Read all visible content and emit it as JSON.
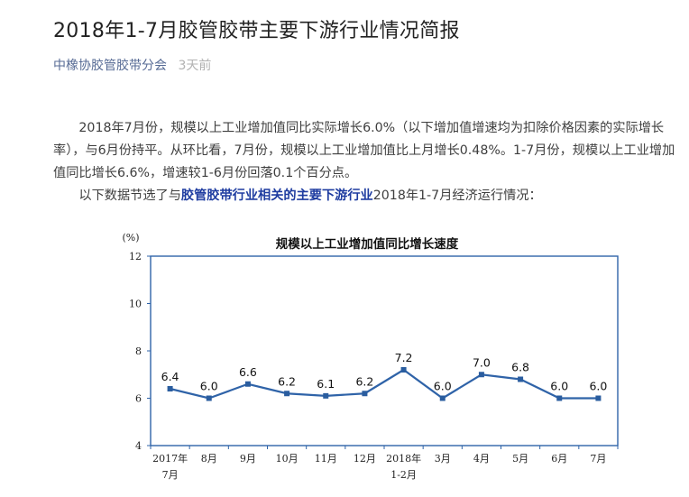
{
  "article": {
    "title": "2018年1-7月胶管胶带主要下游行业情况简报",
    "account": "中橡协胶管胶带分会",
    "time": "3天前",
    "paragraph1": "2018年7月份，规模以上工业增加值同比实际增长6.0%（以下增加值增速均为扣除价格因素的实际增长率），与6月份持平。从环比看，7月份，规模以上工业增加值比上月增长0.48%。1-7月份，规模以上工业增加值同比增长6.6%，增速较1-6月份回落0.1个百分点。",
    "paragraph2_pre": "以下数据节选了与",
    "paragraph2_highlight": "胶管胶带行业相关的主要下游行业",
    "paragraph2_post": "2018年1-7月经济运行情况："
  },
  "chart_data": {
    "type": "line",
    "title": "规模以上工业增加值同比增长速度",
    "ylabel": "(%)",
    "ylim": [
      4,
      12
    ],
    "yticks": [
      4,
      6,
      8,
      10,
      12
    ],
    "categories": [
      [
        "2017年",
        "7月"
      ],
      [
        "8月"
      ],
      [
        "9月"
      ],
      [
        "10月"
      ],
      [
        "11月"
      ],
      [
        "12月"
      ],
      [
        "2018年",
        "1-2月"
      ],
      [
        "3月"
      ],
      [
        "4月"
      ],
      [
        "5月"
      ],
      [
        "6月"
      ],
      [
        "7月"
      ]
    ],
    "series": [
      {
        "values": [
          6.4,
          6.0,
          6.6,
          6.2,
          6.1,
          6.2,
          7.2,
          6.0,
          7.0,
          6.8,
          6.0,
          6.0
        ]
      }
    ],
    "value_labels": [
      "6.4",
      "6.0",
      "6.6",
      "6.2",
      "6.1",
      "6.2",
      "7.2",
      "6.0",
      "7.0",
      "6.8",
      "6.0",
      "6.0"
    ],
    "line_color": "#2f63a8",
    "marker_color": "#2a5d9f",
    "grid": false
  }
}
